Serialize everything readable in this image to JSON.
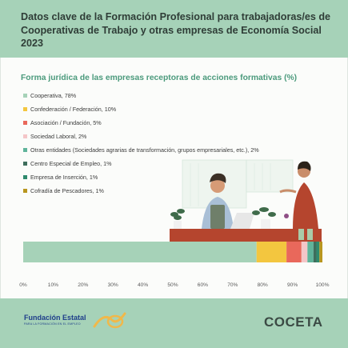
{
  "header": {
    "title": "Datos clave de la Formación Profesional para trabajadoras/es de Cooperativas de Trabajo y otras empresas de Economía Social 2023"
  },
  "footer": {
    "fundacion_name": "Fundación Estatal",
    "fundacion_tagline": "PARA LA FORMACIÓN EN EL EMPLEO",
    "coceta_logo": "COCETA"
  },
  "chart_data": {
    "type": "bar",
    "orientation": "horizontal-stacked",
    "title": "Forma jurídica de las empresas receptoras de acciones formativas (%)",
    "legend_position": "top-left",
    "x_ticks": [
      "0%",
      "10%",
      "20%",
      "30%",
      "40%",
      "50%",
      "60%",
      "70%",
      "80%",
      "90%",
      "100%"
    ],
    "xlim": [
      0,
      100
    ],
    "grid": false,
    "series": [
      {
        "name": "Cooperativa",
        "value": 78,
        "label": "Cooperativa, 78%",
        "color": "#a6d2b8"
      },
      {
        "name": "Confederación / Federación",
        "value": 10,
        "label": "Confederación / Federación, 10%",
        "color": "#f3c63f"
      },
      {
        "name": "Asociación / Fundación",
        "value": 5,
        "label": "Asociación / Fundación, 5%",
        "color": "#e9685b"
      },
      {
        "name": "Sociedad Laboral",
        "value": 2,
        "label": "Sociedad Laboral, 2%",
        "color": "#f4c6c8"
      },
      {
        "name": "Otras entidades",
        "value": 2,
        "label": "Otras entidades (Sociedades agrarias de transformación, grupos empresariales, etc.), 2%",
        "color": "#5fb49a"
      },
      {
        "name": "Centro Especial de Empleo",
        "value": 1,
        "label": "Centro Especial de Empleo, 1%",
        "color": "#3e6e5c"
      },
      {
        "name": "Empresa de Inserción",
        "value": 1,
        "label": "Empresa de Inserción, 1%",
        "color": "#2e8a6d"
      },
      {
        "name": "Cofradía de Pescadores",
        "value": 1,
        "label": "Cofradía de Pescadores, 1%",
        "color": "#b8961e"
      }
    ]
  }
}
